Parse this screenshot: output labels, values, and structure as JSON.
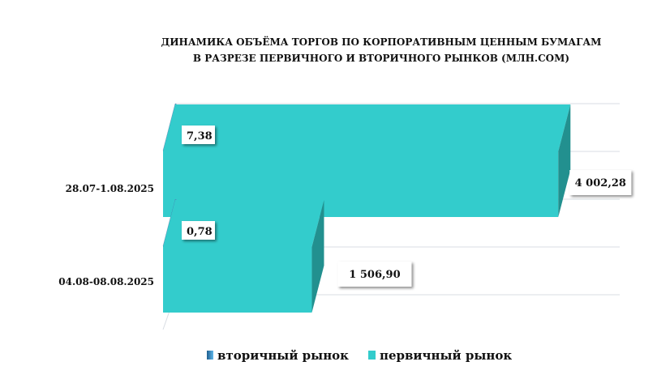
{
  "chart_data": {
    "type": "bar",
    "orientation": "horizontal",
    "title": [
      "ДИНАМИКА ОБЪЁМА ТОРГОВ ПО КОРПОРАТИВНЫМ ЦЕННЫМ БУМАГАМ",
      "В РАЗРЕЗЕ ПЕРВИЧНОГО И ВТОРИЧНОГО РЫНКОВ  (МЛН.СОМ)"
    ],
    "categories": [
      "28.07-1.08.2025",
      "04.08-08.08.2025"
    ],
    "series": [
      {
        "name": "вторичный рынок",
        "values": [
          7.38,
          0.78
        ],
        "labels": [
          "7,38",
          "0,78"
        ],
        "color": "#3a8fc4"
      },
      {
        "name": "первичный рынок",
        "values": [
          4002.28,
          1506.9
        ],
        "labels": [
          "4 002,28",
          "1 506,90"
        ],
        "color": "#33cccc"
      }
    ],
    "xlim": [
      0,
      4600
    ],
    "grid": true,
    "legend_position": "bottom",
    "style": "3d"
  }
}
